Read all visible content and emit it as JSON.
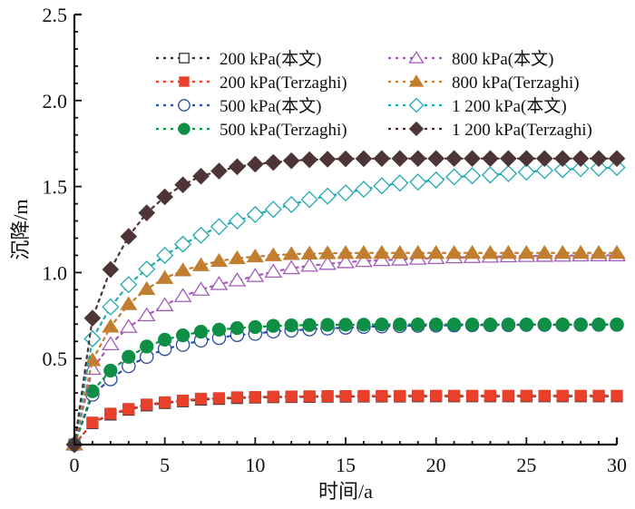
{
  "chart_data": {
    "type": "line",
    "title": "",
    "xlabel": "时间/a",
    "ylabel": "沉降/m",
    "xlim": [
      0,
      30
    ],
    "ylim": [
      0,
      2.5
    ],
    "xticks": [
      0,
      5,
      10,
      15,
      20,
      25,
      30
    ],
    "xtick_labels": [
      "0",
      "5",
      "10",
      "15",
      "20",
      "25",
      "30"
    ],
    "yticks": [
      0.5,
      1.0,
      1.5,
      2.0,
      2.5
    ],
    "ytick_labels": [
      "0.5",
      "1.0",
      "1.5",
      "2.0",
      "2.5"
    ],
    "x_minor_step": 1,
    "y_minor_step": 0.1,
    "grid": false,
    "legend_position": "top",
    "legend_columns": 2,
    "x": [
      0,
      1,
      2,
      3,
      4,
      5,
      6,
      7,
      8,
      9,
      10,
      11,
      12,
      13,
      14,
      15,
      16,
      17,
      18,
      19,
      20,
      21,
      22,
      23,
      24,
      25,
      26,
      27,
      28,
      29,
      30
    ],
    "series": [
      {
        "name": "200 kPa(本文)",
        "color": "#333333",
        "marker": "square-open",
        "values": [
          0,
          0.125,
          0.175,
          0.203,
          0.228,
          0.242,
          0.252,
          0.262,
          0.266,
          0.271,
          0.274,
          0.276,
          0.277,
          0.278,
          0.279,
          0.279,
          0.28,
          0.28,
          0.28,
          0.281,
          0.281,
          0.281,
          0.281,
          0.281,
          0.281,
          0.281,
          0.281,
          0.281,
          0.281,
          0.281,
          0.281
        ]
      },
      {
        "name": "200 kPa(Terzaghi)",
        "color": "#e8402a",
        "marker": "square-filled",
        "values": [
          0,
          0.128,
          0.18,
          0.207,
          0.233,
          0.246,
          0.256,
          0.267,
          0.27,
          0.275,
          0.277,
          0.279,
          0.28,
          0.281,
          0.282,
          0.282,
          0.283,
          0.283,
          0.283,
          0.284,
          0.284,
          0.284,
          0.284,
          0.284,
          0.284,
          0.284,
          0.284,
          0.284,
          0.284,
          0.284,
          0.284
        ]
      },
      {
        "name": "500 kPa(本文)",
        "color": "#2b4c9b",
        "marker": "circle-open",
        "values": [
          0,
          0.29,
          0.38,
          0.456,
          0.51,
          0.556,
          0.58,
          0.605,
          0.62,
          0.637,
          0.644,
          0.658,
          0.663,
          0.67,
          0.675,
          0.68,
          0.684,
          0.687,
          0.689,
          0.691,
          0.692,
          0.693,
          0.694,
          0.695,
          0.695,
          0.696,
          0.696,
          0.696,
          0.697,
          0.697,
          0.697
        ]
      },
      {
        "name": "500 kPa(Terzaghi)",
        "color": "#0e8f45",
        "marker": "circle-filled",
        "values": [
          0,
          0.31,
          0.43,
          0.51,
          0.57,
          0.61,
          0.635,
          0.656,
          0.668,
          0.677,
          0.683,
          0.69,
          0.693,
          0.695,
          0.696,
          0.697,
          0.697,
          0.698,
          0.698,
          0.698,
          0.698,
          0.698,
          0.698,
          0.698,
          0.698,
          0.698,
          0.698,
          0.698,
          0.698,
          0.698,
          0.698
        ]
      },
      {
        "name": "800 kPa(本文)",
        "color": "#a35bb8",
        "marker": "triangle-open",
        "values": [
          0,
          0.44,
          0.583,
          0.684,
          0.751,
          0.81,
          0.863,
          0.9,
          0.933,
          0.954,
          0.98,
          1.005,
          1.025,
          1.04,
          1.05,
          1.06,
          1.067,
          1.072,
          1.075,
          1.08,
          1.084,
          1.088,
          1.09,
          1.092,
          1.094,
          1.096,
          1.097,
          1.098,
          1.099,
          1.1,
          1.1
        ]
      },
      {
        "name": "800 kPa(Terzaghi)",
        "color": "#c27e2f",
        "marker": "triangle-filled",
        "values": [
          0,
          0.49,
          0.685,
          0.816,
          0.904,
          0.968,
          1.012,
          1.042,
          1.067,
          1.083,
          1.093,
          1.1,
          1.107,
          1.11,
          1.112,
          1.113,
          1.114,
          1.114,
          1.114,
          1.114,
          1.114,
          1.114,
          1.114,
          1.114,
          1.114,
          1.114,
          1.114,
          1.114,
          1.114,
          1.114,
          1.114
        ]
      },
      {
        "name": "1 200 kPa(本文)",
        "color": "#22a9b0",
        "marker": "diamond-open",
        "values": [
          0,
          0.615,
          0.8,
          0.93,
          1.02,
          1.1,
          1.165,
          1.217,
          1.267,
          1.3,
          1.337,
          1.367,
          1.395,
          1.425,
          1.444,
          1.463,
          1.484,
          1.504,
          1.52,
          1.526,
          1.538,
          1.556,
          1.562,
          1.567,
          1.575,
          1.584,
          1.593,
          1.598,
          1.604,
          1.607,
          1.611
        ]
      },
      {
        "name": "1 200 kPa(Terzaghi)",
        "color": "#4d3537",
        "marker": "diamond-filled",
        "values": [
          0,
          0.735,
          1.018,
          1.21,
          1.347,
          1.44,
          1.51,
          1.56,
          1.59,
          1.615,
          1.63,
          1.64,
          1.65,
          1.656,
          1.659,
          1.661,
          1.662,
          1.663,
          1.663,
          1.663,
          1.663,
          1.663,
          1.663,
          1.663,
          1.663,
          1.663,
          1.663,
          1.663,
          1.663,
          1.663,
          1.663
        ]
      }
    ]
  }
}
